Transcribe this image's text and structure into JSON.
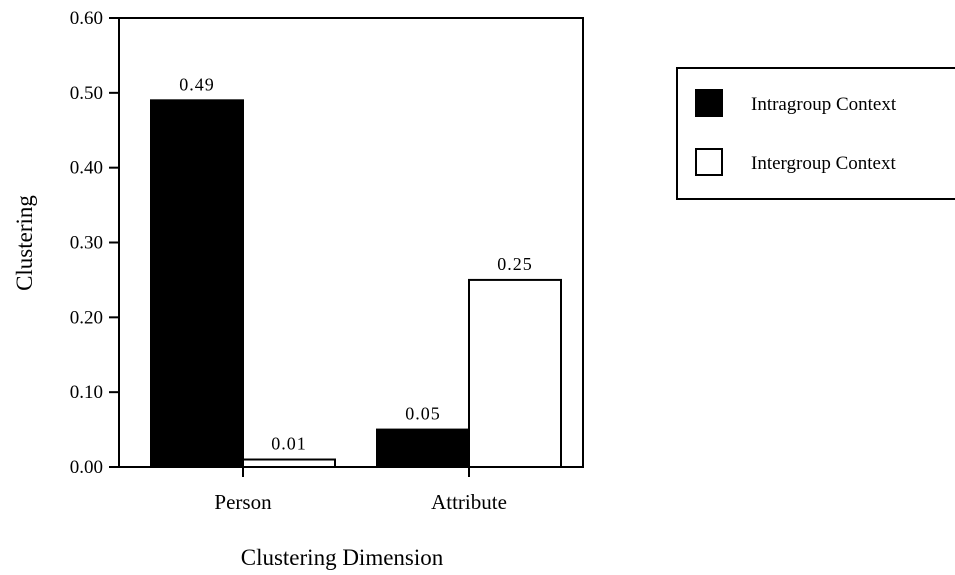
{
  "chart_data": {
    "type": "bar",
    "categories": [
      "Person",
      "Attribute"
    ],
    "series": [
      {
        "name": "Intragroup Context",
        "values": [
          0.49,
          0.05
        ],
        "value_labels": [
          "0.49",
          "0.05"
        ],
        "color": "#000000"
      },
      {
        "name": "Intergroup Context",
        "values": [
          0.01,
          0.25
        ],
        "value_labels": [
          "0.01",
          "0.25"
        ],
        "color": "#ffffff"
      }
    ],
    "xlabel": "Clustering Dimension",
    "ylabel": "Clustering",
    "ylim": [
      0,
      0.6
    ],
    "yticks": [
      0.0,
      0.1,
      0.2,
      0.3,
      0.4,
      0.5,
      0.6
    ],
    "ytick_labels": [
      "0.00",
      "0.10",
      "0.20",
      "0.30",
      "0.40",
      "0.50",
      "0.60"
    ],
    "grid": false,
    "legend_position": "right"
  }
}
